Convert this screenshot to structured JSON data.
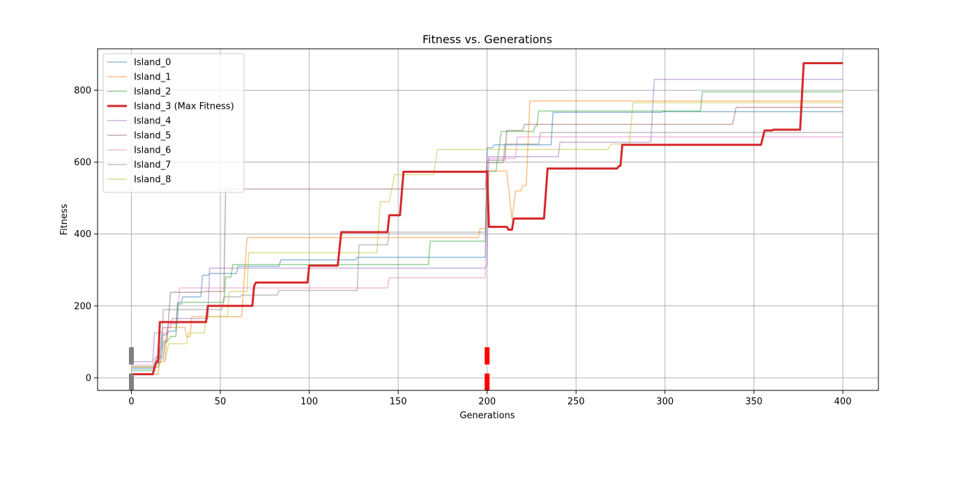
{
  "chart_data": {
    "type": "line",
    "title": "Fitness vs. Generations",
    "xlabel": "Generations",
    "ylabel": "Fitness",
    "xlim": [
      -19,
      420
    ],
    "ylim": [
      -35,
      915
    ],
    "xticks": [
      0,
      50,
      100,
      150,
      200,
      250,
      300,
      350,
      400
    ],
    "yticks": [
      0,
      200,
      400,
      600,
      800
    ],
    "grid": true,
    "legend_position": "top-left",
    "series": [
      {
        "name": "Island_0",
        "color": "#1f77b4",
        "width": 1.5,
        "opacity": 0.5,
        "points": [
          [
            0,
            25
          ],
          [
            12,
            25
          ],
          [
            13,
            40
          ],
          [
            16,
            40
          ],
          [
            17,
            120
          ],
          [
            20,
            120
          ],
          [
            21,
            130
          ],
          [
            25,
            130
          ],
          [
            26,
            210
          ],
          [
            28,
            210
          ],
          [
            29,
            225
          ],
          [
            39,
            225
          ],
          [
            40,
            285
          ],
          [
            43,
            285
          ],
          [
            44,
            290
          ],
          [
            59,
            290
          ],
          [
            60,
            310
          ],
          [
            83,
            310
          ],
          [
            84,
            328
          ],
          [
            126,
            328
          ],
          [
            127,
            335
          ],
          [
            199,
            335
          ],
          [
            200,
            640
          ],
          [
            203,
            640
          ],
          [
            204,
            648
          ],
          [
            236,
            648
          ],
          [
            237,
            738
          ],
          [
            298,
            738
          ],
          [
            299,
            740
          ],
          [
            400,
            740
          ]
        ]
      },
      {
        "name": "Island_1",
        "color": "#ff7f0e",
        "width": 1.5,
        "opacity": 0.5,
        "points": [
          [
            0,
            10
          ],
          [
            15,
            10
          ],
          [
            16,
            45
          ],
          [
            19,
            45
          ],
          [
            20,
            140
          ],
          [
            30,
            140
          ],
          [
            31,
            115
          ],
          [
            33,
            115
          ],
          [
            34,
            170
          ],
          [
            62,
            170
          ],
          [
            65,
            390
          ],
          [
            195,
            390
          ],
          [
            196,
            415
          ],
          [
            199,
            415
          ],
          [
            201,
            575
          ],
          [
            211,
            575
          ],
          [
            214,
            440
          ],
          [
            216,
            520
          ],
          [
            219,
            520
          ],
          [
            220,
            535
          ],
          [
            222,
            535
          ],
          [
            224,
            770
          ],
          [
            400,
            770
          ]
        ]
      },
      {
        "name": "Island_2",
        "color": "#2ca02c",
        "width": 1.5,
        "opacity": 0.5,
        "points": [
          [
            0,
            20
          ],
          [
            13,
            20
          ],
          [
            14,
            60
          ],
          [
            17,
            60
          ],
          [
            18,
            100
          ],
          [
            20,
            100
          ],
          [
            22,
            115
          ],
          [
            25,
            115
          ],
          [
            26,
            205
          ],
          [
            28,
            205
          ],
          [
            29,
            210
          ],
          [
            52,
            210
          ],
          [
            53,
            280
          ],
          [
            56,
            280
          ],
          [
            57,
            315
          ],
          [
            167,
            315
          ],
          [
            168,
            380
          ],
          [
            199,
            380
          ],
          [
            200,
            575
          ],
          [
            205,
            575
          ],
          [
            208,
            685
          ],
          [
            226,
            685
          ],
          [
            227,
            700
          ],
          [
            228,
            700
          ],
          [
            229,
            742
          ],
          [
            320,
            742
          ],
          [
            321,
            795
          ],
          [
            400,
            795
          ]
        ]
      },
      {
        "name": "Island_3 (Max Fitness)",
        "color": "#d62728",
        "width": 3,
        "opacity": 1,
        "points": [
          [
            0,
            10
          ],
          [
            12,
            10
          ],
          [
            14,
            45
          ],
          [
            15,
            45
          ],
          [
            16,
            155
          ],
          [
            42,
            155
          ],
          [
            43,
            200
          ],
          [
            59,
            200
          ],
          [
            60,
            200
          ],
          [
            68,
            200
          ],
          [
            69,
            255
          ],
          [
            70,
            265
          ],
          [
            99,
            265
          ],
          [
            100,
            312
          ],
          [
            116,
            312
          ],
          [
            118,
            405
          ],
          [
            144,
            405
          ],
          [
            145,
            452
          ],
          [
            151,
            452
          ],
          [
            153,
            573
          ],
          [
            199,
            573
          ],
          [
            200,
            575
          ],
          [
            201,
            420
          ],
          [
            211,
            420
          ],
          [
            212,
            412
          ],
          [
            214,
            412
          ],
          [
            215,
            443
          ],
          [
            232,
            443
          ],
          [
            234,
            582
          ],
          [
            273,
            582
          ],
          [
            274,
            588
          ],
          [
            275,
            590
          ],
          [
            276,
            648
          ],
          [
            354,
            648
          ],
          [
            356,
            688
          ],
          [
            360,
            688
          ],
          [
            361,
            690
          ],
          [
            376,
            690
          ],
          [
            378,
            875
          ],
          [
            400,
            875
          ]
        ]
      },
      {
        "name": "Island_4",
        "color": "#9467bd",
        "width": 1.5,
        "opacity": 0.5,
        "points": [
          [
            0,
            45
          ],
          [
            12,
            45
          ],
          [
            13,
            125
          ],
          [
            17,
            125
          ],
          [
            18,
            140
          ],
          [
            22,
            140
          ],
          [
            23,
            165
          ],
          [
            43,
            165
          ],
          [
            44,
            305
          ],
          [
            199,
            305
          ],
          [
            200,
            315
          ],
          [
            201,
            615
          ],
          [
            240,
            615
          ],
          [
            241,
            655
          ],
          [
            292,
            655
          ],
          [
            294,
            830
          ],
          [
            400,
            830
          ]
        ]
      },
      {
        "name": "Island_5",
        "color": "#8c564b",
        "width": 1.5,
        "opacity": 0.5,
        "points": [
          [
            0,
            30
          ],
          [
            13,
            30
          ],
          [
            15,
            55
          ],
          [
            18,
            55
          ],
          [
            19,
            105
          ],
          [
            20,
            105
          ],
          [
            22,
            238
          ],
          [
            40,
            238
          ],
          [
            41,
            240
          ],
          [
            52,
            240
          ],
          [
            53,
            525
          ],
          [
            199,
            525
          ],
          [
            200,
            605
          ],
          [
            210,
            605
          ],
          [
            211,
            688
          ],
          [
            220,
            688
          ],
          [
            221,
            705
          ],
          [
            338,
            705
          ],
          [
            340,
            752
          ],
          [
            400,
            752
          ]
        ]
      },
      {
        "name": "Island_6",
        "color": "#e377c2",
        "width": 1.5,
        "opacity": 0.5,
        "points": [
          [
            0,
            35
          ],
          [
            12,
            35
          ],
          [
            13,
            55
          ],
          [
            17,
            55
          ],
          [
            18,
            125
          ],
          [
            20,
            125
          ],
          [
            21,
            150
          ],
          [
            26,
            150
          ],
          [
            27,
            250
          ],
          [
            144,
            250
          ],
          [
            145,
            278
          ],
          [
            199,
            278
          ],
          [
            200,
            610
          ],
          [
            216,
            610
          ],
          [
            217,
            670
          ],
          [
            400,
            670
          ]
        ]
      },
      {
        "name": "Island_7",
        "color": "#7f7f7f",
        "width": 1.5,
        "opacity": 0.5,
        "points": [
          [
            0,
            30
          ],
          [
            15,
            30
          ],
          [
            16,
            80
          ],
          [
            17,
            80
          ],
          [
            18,
            190
          ],
          [
            51,
            190
          ],
          [
            52,
            225
          ],
          [
            61,
            225
          ],
          [
            62,
            230
          ],
          [
            82,
            230
          ],
          [
            83,
            243
          ],
          [
            127,
            243
          ],
          [
            128,
            370
          ],
          [
            144,
            370
          ],
          [
            145,
            405
          ],
          [
            199,
            405
          ],
          [
            200,
            598
          ],
          [
            209,
            598
          ],
          [
            210,
            650
          ],
          [
            229,
            650
          ],
          [
            230,
            682
          ],
          [
            400,
            682
          ]
        ]
      },
      {
        "name": "Island_8",
        "color": "#bcbd22",
        "width": 1.5,
        "opacity": 0.5,
        "points": [
          [
            0,
            30
          ],
          [
            15,
            30
          ],
          [
            17,
            50
          ],
          [
            19,
            50
          ],
          [
            21,
            95
          ],
          [
            31,
            95
          ],
          [
            32,
            125
          ],
          [
            41,
            125
          ],
          [
            42,
            170
          ],
          [
            54,
            170
          ],
          [
            55,
            240
          ],
          [
            65,
            240
          ],
          [
            66,
            348
          ],
          [
            138,
            348
          ],
          [
            139,
            425
          ],
          [
            140,
            490
          ],
          [
            145,
            490
          ],
          [
            148,
            565
          ],
          [
            170,
            565
          ],
          [
            172,
            635
          ],
          [
            268,
            635
          ],
          [
            270,
            650
          ],
          [
            280,
            650
          ],
          [
            282,
            765
          ],
          [
            400,
            765
          ]
        ]
      }
    ],
    "markers": [
      {
        "color": "#808080",
        "x": 0,
        "y_ranges": [
          [
            37,
            85
          ],
          [
            -35,
            12
          ]
        ]
      },
      {
        "color": "#ff0000",
        "x": 200,
        "y_ranges": [
          [
            37,
            85
          ],
          [
            -35,
            12
          ]
        ]
      }
    ]
  }
}
